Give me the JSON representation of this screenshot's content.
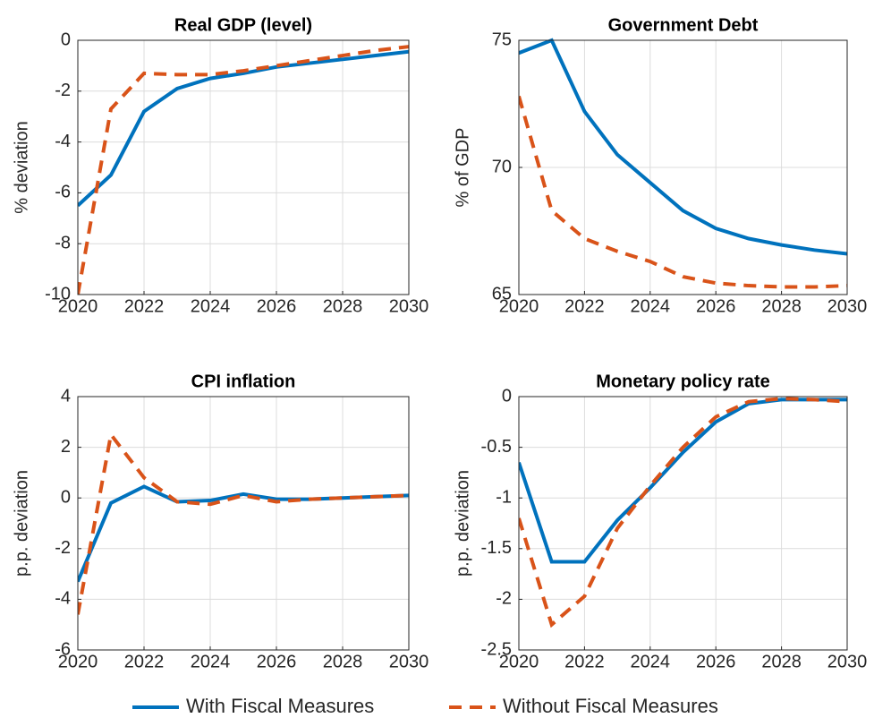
{
  "chart_data": [
    {
      "type": "line",
      "title": "Real GDP (level)",
      "ylabel": "% deviation",
      "x": [
        2020,
        2021,
        2022,
        2023,
        2024,
        2025,
        2026,
        2027,
        2028,
        2029,
        2030
      ],
      "xlim": [
        2020,
        2030
      ],
      "xticks": [
        2020,
        2022,
        2024,
        2026,
        2028,
        2030
      ],
      "ylim": [
        -10,
        0
      ],
      "yticks": [
        -10,
        -8,
        -6,
        -4,
        -2,
        0
      ],
      "grid": true,
      "series": [
        {
          "name": "With Fiscal Measures",
          "color": "#0072BD",
          "style": "solid",
          "values": [
            -6.5,
            -5.3,
            -2.8,
            -1.9,
            -1.5,
            -1.3,
            -1.05,
            -0.9,
            -0.75,
            -0.6,
            -0.45
          ]
        },
        {
          "name": "Without Fiscal Measures",
          "color": "#D95319",
          "style": "dashed",
          "values": [
            -10,
            -2.7,
            -1.3,
            -1.35,
            -1.35,
            -1.2,
            -1.0,
            -0.8,
            -0.6,
            -0.4,
            -0.25
          ]
        }
      ]
    },
    {
      "type": "line",
      "title": "Government Debt",
      "ylabel": "% of GDP",
      "x": [
        2020,
        2021,
        2022,
        2023,
        2024,
        2025,
        2026,
        2027,
        2028,
        2029,
        2030
      ],
      "xlim": [
        2020,
        2030
      ],
      "xticks": [
        2020,
        2022,
        2024,
        2026,
        2028,
        2030
      ],
      "ylim": [
        65,
        75
      ],
      "yticks": [
        65,
        70,
        75
      ],
      "grid": true,
      "series": [
        {
          "color": "#0072BD",
          "style": "solid",
          "values": [
            74.5,
            75,
            72.2,
            70.5,
            69.4,
            68.3,
            67.6,
            67.2,
            66.95,
            66.75,
            66.6
          ]
        },
        {
          "color": "#D95319",
          "style": "dashed",
          "values": [
            72.8,
            68.3,
            67.2,
            66.7,
            66.3,
            65.7,
            65.45,
            65.35,
            65.3,
            65.3,
            65.35
          ]
        }
      ]
    },
    {
      "type": "line",
      "title": "CPI inflation",
      "ylabel": "p.p. deviation",
      "x": [
        2020,
        2021,
        2022,
        2023,
        2024,
        2025,
        2026,
        2027,
        2028,
        2029,
        2030
      ],
      "xlim": [
        2020,
        2030
      ],
      "xticks": [
        2020,
        2022,
        2024,
        2026,
        2028,
        2030
      ],
      "ylim": [
        -6,
        4
      ],
      "yticks": [
        -6,
        -4,
        -2,
        0,
        2,
        4
      ],
      "grid": true,
      "series": [
        {
          "color": "#0072BD",
          "style": "solid",
          "values": [
            -3.3,
            -0.2,
            0.45,
            -0.15,
            -0.1,
            0.15,
            -0.05,
            -0.05,
            0.0,
            0.05,
            0.1
          ]
        },
        {
          "color": "#D95319",
          "style": "dashed",
          "values": [
            -4.6,
            2.5,
            0.8,
            -0.15,
            -0.25,
            0.1,
            -0.15,
            -0.05,
            0.0,
            0.05,
            0.1
          ]
        }
      ]
    },
    {
      "type": "line",
      "title": "Monetary policy rate",
      "ylabel": "p.p. deviation",
      "x": [
        2020,
        2021,
        2022,
        2023,
        2024,
        2025,
        2026,
        2027,
        2028,
        2029,
        2030
      ],
      "xlim": [
        2020,
        2030
      ],
      "xticks": [
        2020,
        2022,
        2024,
        2026,
        2028,
        2030
      ],
      "ylim": [
        -2.5,
        0
      ],
      "yticks": [
        -2.5,
        -2,
        -1.5,
        -1,
        -0.5,
        0
      ],
      "grid": true,
      "series": [
        {
          "color": "#0072BD",
          "style": "solid",
          "values": [
            -0.65,
            -1.63,
            -1.63,
            -1.22,
            -0.9,
            -0.55,
            -0.25,
            -0.07,
            -0.03,
            -0.03,
            -0.03
          ]
        },
        {
          "color": "#D95319",
          "style": "dashed",
          "values": [
            -1.2,
            -2.25,
            -1.97,
            -1.3,
            -0.88,
            -0.5,
            -0.2,
            -0.05,
            -0.02,
            -0.03,
            -0.05
          ]
        }
      ]
    }
  ]
}
